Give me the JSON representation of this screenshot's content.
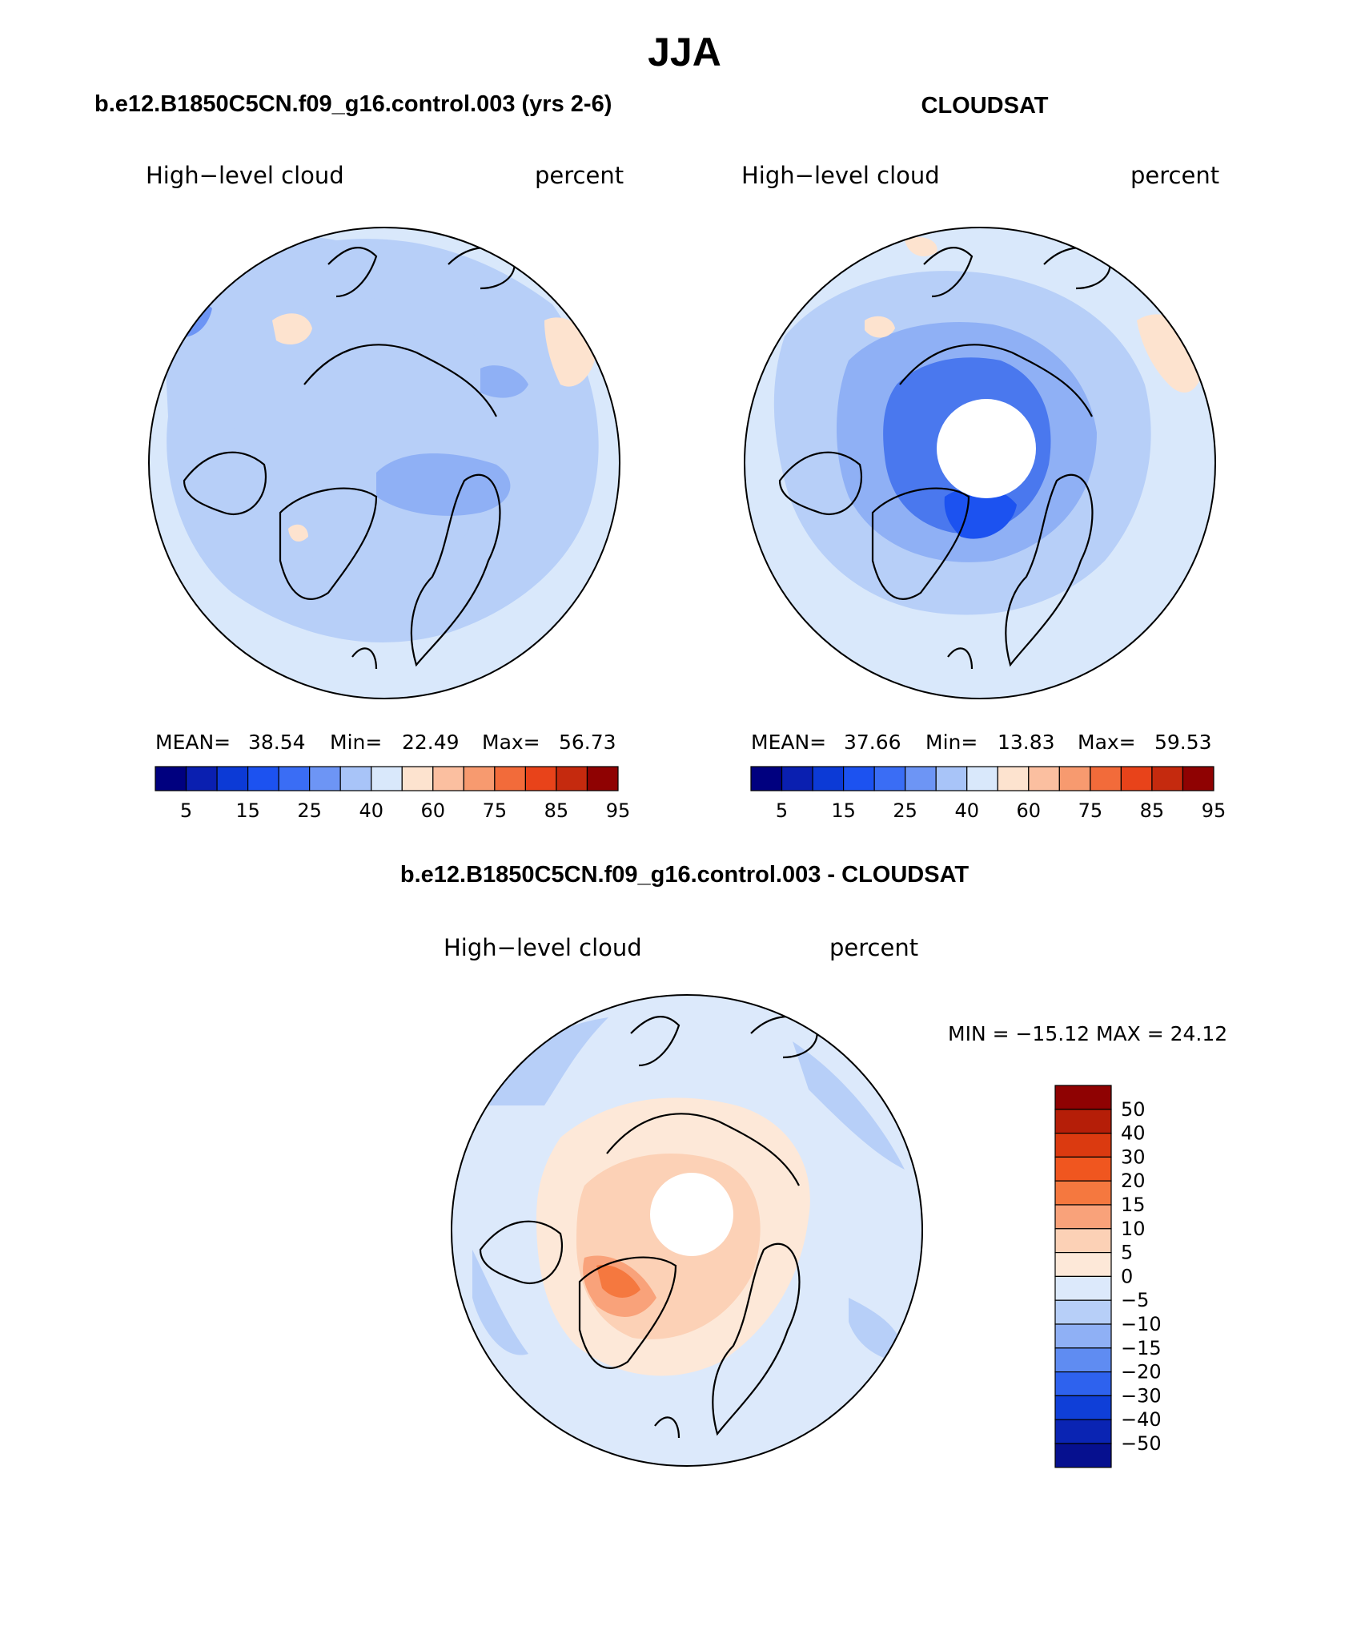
{
  "title": "JJA",
  "panels": {
    "model": {
      "subtitle": "b.e12.B1850C5CN.f09_g16.control.003 (yrs 2-6)",
      "field_label": "High−level cloud",
      "units_label": "percent",
      "stats": {
        "mean_label": "MEAN=",
        "mean": "38.54",
        "min_label": "Min=",
        "min": "22.49",
        "max_label": "Max=",
        "max": "56.73"
      },
      "colorbar_ticks": [
        "5",
        "15",
        "25",
        "40",
        "60",
        "75",
        "85",
        "95"
      ]
    },
    "obs": {
      "subtitle": "CLOUDSAT",
      "field_label": "High−level cloud",
      "units_label": "percent",
      "stats": {
        "mean_label": "MEAN=",
        "mean": "37.66",
        "min_label": "Min=",
        "min": "13.83",
        "max_label": "Max=",
        "max": "59.53"
      },
      "colorbar_ticks": [
        "5",
        "15",
        "25",
        "40",
        "60",
        "75",
        "85",
        "95"
      ]
    },
    "diff": {
      "subtitle": "b.e12.B1850C5CN.f09_g16.control.003 - CLOUDSAT",
      "field_label": "High−level cloud",
      "units_label": "percent",
      "minmax_text": "MIN = −15.12 MAX =  24.12",
      "colorbar_ticks": [
        "50",
        "40",
        "30",
        "20",
        "15",
        "10",
        "5",
        "0",
        "−5",
        "−10",
        "−15",
        "−20",
        "−30",
        "−40",
        "−50"
      ]
    }
  },
  "palette": {
    "seq": [
      "#00007f",
      "#0a1fb0",
      "#0c3ad6",
      "#1c52f0",
      "#3a6df5",
      "#6d95f5",
      "#a8c4f8",
      "#d9e8fb",
      "#fde3cf",
      "#fbbfa0",
      "#f79a6f",
      "#f26b3a",
      "#e8431a",
      "#c52a0e",
      "#8f0202"
    ],
    "div": [
      "#8f0202",
      "#b51e08",
      "#db3a10",
      "#f0561f",
      "#f5783f",
      "#f9a27a",
      "#fcd1b6",
      "#fde8d8",
      "#dce9fb",
      "#b7cff8",
      "#8fb0f5",
      "#5f8cf2",
      "#2e62ee",
      "#0f3fd8",
      "#0a24b3",
      "#06108f"
    ],
    "ocean_bg": "#d9e8fb",
    "pale_blue": "#b7cff8",
    "mid_blue": "#8fb0f5",
    "deep_blue": "#4a78ee",
    "peach": "#fde3cf",
    "orange": "#f79a6f",
    "red_orange": "#f26b3a"
  }
}
